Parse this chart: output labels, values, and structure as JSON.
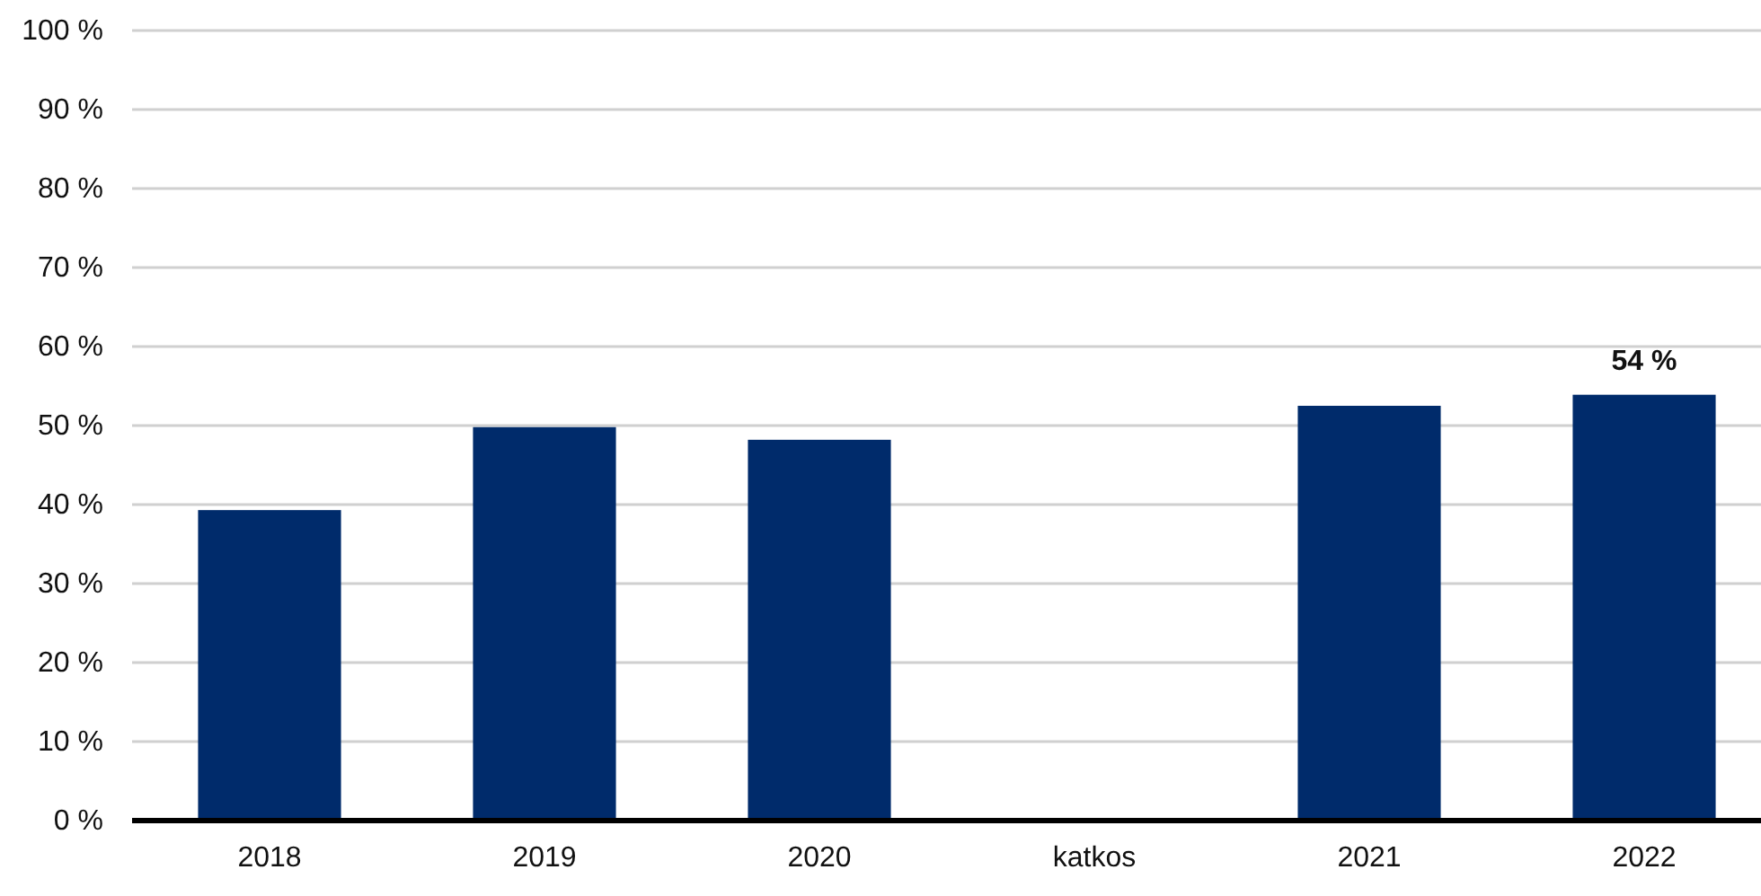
{
  "chart_data": {
    "type": "bar",
    "categories": [
      "2018",
      "2019",
      "2020",
      "katkos",
      "2021",
      "2022"
    ],
    "values": [
      39.3,
      49.8,
      48.2,
      null,
      52.5,
      53.9
    ],
    "value_labels": [
      null,
      null,
      null,
      null,
      null,
      "54 %"
    ],
    "color": "#002b6b",
    "ylim": [
      0,
      100
    ],
    "yticks": [
      {
        "value": 0,
        "label": "0 %"
      },
      {
        "value": 10,
        "label": "10 %"
      },
      {
        "value": 20,
        "label": "20 %"
      },
      {
        "value": 30,
        "label": "30 %"
      },
      {
        "value": 40,
        "label": "40 %"
      },
      {
        "value": 50,
        "label": "50 %"
      },
      {
        "value": 60,
        "label": "60 %"
      },
      {
        "value": 70,
        "label": "70 %"
      },
      {
        "value": 80,
        "label": "80 %"
      },
      {
        "value": 90,
        "label": "90 %"
      },
      {
        "value": 100,
        "label": "100 %"
      }
    ],
    "grid": "y"
  }
}
